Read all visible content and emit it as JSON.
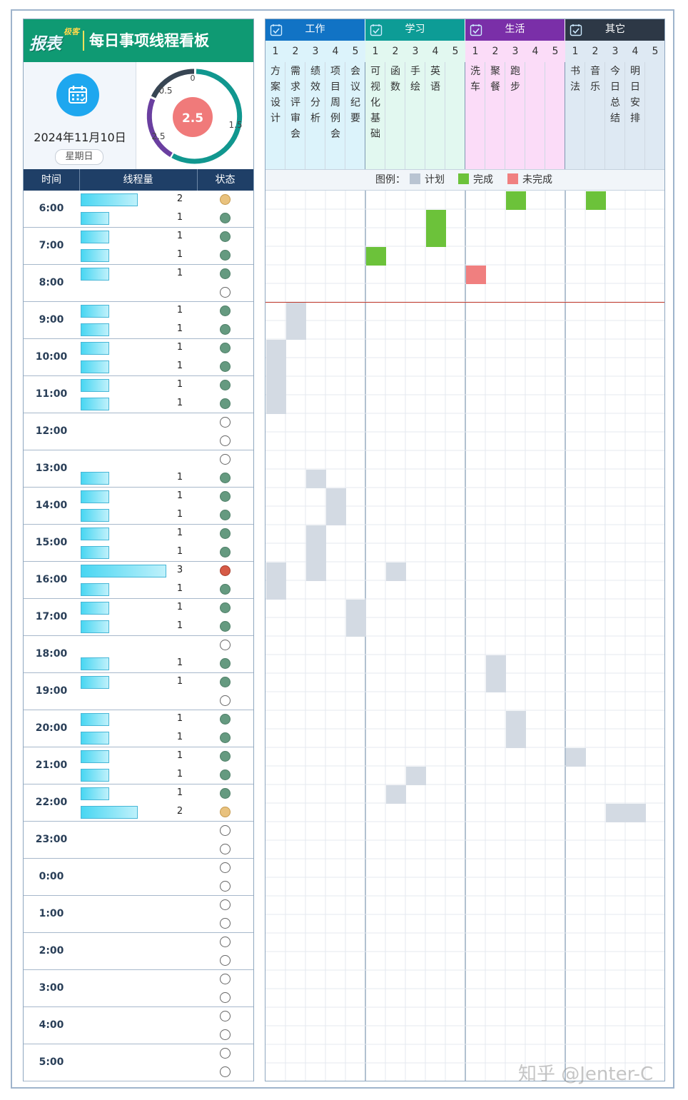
{
  "header": {
    "logo_text": "报表",
    "logo_sub": "极客",
    "title": "每日事项线程看板"
  },
  "date": {
    "date_text": "2024年11月10日",
    "weekday": "星期日"
  },
  "gauge": {
    "value": "2.5",
    "value_num": 2.5,
    "min": 0,
    "max": 2,
    "ticks": [
      "0",
      "0.5",
      "1.5",
      "2.5"
    ],
    "colors": {
      "dark": "#374553",
      "teal": "#11978f",
      "purple": "#6a3fa0",
      "center": "#f07a7a"
    }
  },
  "table_head": {
    "time": "时间",
    "threads": "线程量",
    "status": "状态"
  },
  "hours": [
    {
      "label": "6:00",
      "slots": [
        {
          "count": 2,
          "status": "warn"
        },
        {
          "count": 1,
          "status": "done"
        }
      ]
    },
    {
      "label": "7:00",
      "slots": [
        {
          "count": 1,
          "status": "done"
        },
        {
          "count": 1,
          "status": "done"
        }
      ]
    },
    {
      "label": "8:00",
      "slots": [
        {
          "count": 1,
          "status": "done"
        },
        {
          "count": 0,
          "status": "empty"
        }
      ]
    },
    {
      "label": "9:00",
      "slots": [
        {
          "count": 1,
          "status": "done"
        },
        {
          "count": 1,
          "status": "done"
        }
      ]
    },
    {
      "label": "10:00",
      "slots": [
        {
          "count": 1,
          "status": "done"
        },
        {
          "count": 1,
          "status": "done"
        }
      ]
    },
    {
      "label": "11:00",
      "slots": [
        {
          "count": 1,
          "status": "done"
        },
        {
          "count": 1,
          "status": "done"
        }
      ]
    },
    {
      "label": "12:00",
      "slots": [
        {
          "count": 0,
          "status": "empty"
        },
        {
          "count": 0,
          "status": "empty"
        }
      ]
    },
    {
      "label": "13:00",
      "slots": [
        {
          "count": 0,
          "status": "empty"
        },
        {
          "count": 1,
          "status": "done"
        }
      ]
    },
    {
      "label": "14:00",
      "slots": [
        {
          "count": 1,
          "status": "done"
        },
        {
          "count": 1,
          "status": "done"
        }
      ]
    },
    {
      "label": "15:00",
      "slots": [
        {
          "count": 1,
          "status": "done"
        },
        {
          "count": 1,
          "status": "done"
        }
      ]
    },
    {
      "label": "16:00",
      "slots": [
        {
          "count": 3,
          "status": "over"
        },
        {
          "count": 1,
          "status": "done"
        }
      ]
    },
    {
      "label": "17:00",
      "slots": [
        {
          "count": 1,
          "status": "done"
        },
        {
          "count": 1,
          "status": "done"
        }
      ]
    },
    {
      "label": "18:00",
      "slots": [
        {
          "count": 0,
          "status": "empty"
        },
        {
          "count": 1,
          "status": "done"
        }
      ]
    },
    {
      "label": "19:00",
      "slots": [
        {
          "count": 1,
          "status": "done"
        },
        {
          "count": 0,
          "status": "empty"
        }
      ]
    },
    {
      "label": "20:00",
      "slots": [
        {
          "count": 1,
          "status": "done"
        },
        {
          "count": 1,
          "status": "done"
        }
      ]
    },
    {
      "label": "21:00",
      "slots": [
        {
          "count": 1,
          "status": "done"
        },
        {
          "count": 1,
          "status": "done"
        }
      ]
    },
    {
      "label": "22:00",
      "slots": [
        {
          "count": 1,
          "status": "done"
        },
        {
          "count": 2,
          "status": "warn"
        }
      ]
    },
    {
      "label": "23:00",
      "slots": [
        {
          "count": 0,
          "status": "empty"
        },
        {
          "count": 0,
          "status": "empty"
        }
      ]
    },
    {
      "label": "0:00",
      "slots": [
        {
          "count": 0,
          "status": "empty"
        },
        {
          "count": 0,
          "status": "empty"
        }
      ]
    },
    {
      "label": "1:00",
      "slots": [
        {
          "count": 0,
          "status": "empty"
        },
        {
          "count": 0,
          "status": "empty"
        }
      ]
    },
    {
      "label": "2:00",
      "slots": [
        {
          "count": 0,
          "status": "empty"
        },
        {
          "count": 0,
          "status": "empty"
        }
      ]
    },
    {
      "label": "3:00",
      "slots": [
        {
          "count": 0,
          "status": "empty"
        },
        {
          "count": 0,
          "status": "empty"
        }
      ]
    },
    {
      "label": "4:00",
      "slots": [
        {
          "count": 0,
          "status": "empty"
        },
        {
          "count": 0,
          "status": "empty"
        }
      ]
    },
    {
      "label": "5:00",
      "slots": [
        {
          "count": 0,
          "status": "empty"
        },
        {
          "count": 0,
          "status": "empty"
        }
      ]
    }
  ],
  "categories": [
    {
      "name": "工作",
      "head_color": "#1173c5",
      "bg": "#dcf3fb",
      "numbers": [
        "1",
        "2",
        "3",
        "4",
        "5"
      ],
      "tasks": [
        "方案设计",
        "需求评审会",
        "绩效分析",
        "项目周例会",
        "会议纪要"
      ]
    },
    {
      "name": "学习",
      "head_color": "#0d9c96",
      "bg": "#e2f8f0",
      "numbers": [
        "1",
        "2",
        "3",
        "4",
        "5"
      ],
      "tasks": [
        "可视化基础",
        "函数",
        "手绘",
        "英语",
        ""
      ]
    },
    {
      "name": "生活",
      "head_color": "#7a2fa8",
      "bg": "#fbdcf8",
      "numbers": [
        "1",
        "2",
        "3",
        "4",
        "5"
      ],
      "tasks": [
        "洗车",
        "聚餐",
        "跑步",
        "",
        ""
      ]
    },
    {
      "name": "其它",
      "head_color": "#2d3846",
      "bg": "#dee9f3",
      "numbers": [
        "1",
        "2",
        "3",
        "4",
        "5"
      ],
      "tasks": [
        "书法",
        "音乐",
        "今日总结",
        "明日安排",
        ""
      ]
    }
  ],
  "legend": {
    "title": "图例：",
    "items": [
      {
        "label": "计划",
        "color": "#b9c4d2"
      },
      {
        "label": "完成",
        "color": "#6cc23a"
      },
      {
        "label": "未完成",
        "color": "#f08080"
      }
    ]
  },
  "schedule": {
    "colors": {
      "plan": "#d3dae3",
      "done": "#6cc23a",
      "fail": "#f07f7f"
    },
    "now_row": 6,
    "cells": [
      {
        "row": 0,
        "col": 12,
        "state": "done"
      },
      {
        "row": 0,
        "col": 16,
        "state": "done"
      },
      {
        "row": 1,
        "col": 8,
        "state": "done"
      },
      {
        "row": 2,
        "col": 8,
        "state": "done"
      },
      {
        "row": 3,
        "col": 5,
        "state": "done"
      },
      {
        "row": 4,
        "col": 10,
        "state": "fail"
      },
      {
        "row": 6,
        "col": 1,
        "state": "plan"
      },
      {
        "row": 7,
        "col": 1,
        "state": "plan"
      },
      {
        "row": 8,
        "col": 0,
        "state": "plan"
      },
      {
        "row": 9,
        "col": 0,
        "state": "plan"
      },
      {
        "row": 10,
        "col": 0,
        "state": "plan"
      },
      {
        "row": 11,
        "col": 0,
        "state": "plan"
      },
      {
        "row": 15,
        "col": 2,
        "state": "plan"
      },
      {
        "row": 16,
        "col": 3,
        "state": "plan"
      },
      {
        "row": 17,
        "col": 3,
        "state": "plan"
      },
      {
        "row": 18,
        "col": 2,
        "state": "plan"
      },
      {
        "row": 19,
        "col": 2,
        "state": "plan"
      },
      {
        "row": 20,
        "col": 0,
        "state": "plan"
      },
      {
        "row": 20,
        "col": 2,
        "state": "plan"
      },
      {
        "row": 20,
        "col": 6,
        "state": "plan"
      },
      {
        "row": 21,
        "col": 0,
        "state": "plan"
      },
      {
        "row": 22,
        "col": 4,
        "state": "plan"
      },
      {
        "row": 23,
        "col": 4,
        "state": "plan"
      },
      {
        "row": 25,
        "col": 11,
        "state": "plan"
      },
      {
        "row": 26,
        "col": 11,
        "state": "plan"
      },
      {
        "row": 28,
        "col": 12,
        "state": "plan"
      },
      {
        "row": 29,
        "col": 12,
        "state": "plan"
      },
      {
        "row": 30,
        "col": 15,
        "state": "plan"
      },
      {
        "row": 31,
        "col": 7,
        "state": "plan"
      },
      {
        "row": 32,
        "col": 6,
        "state": "plan"
      },
      {
        "row": 33,
        "col": 17,
        "state": "plan"
      },
      {
        "row": 33,
        "col": 18,
        "state": "plan"
      }
    ]
  },
  "watermark": "知乎 @Jenter-C"
}
